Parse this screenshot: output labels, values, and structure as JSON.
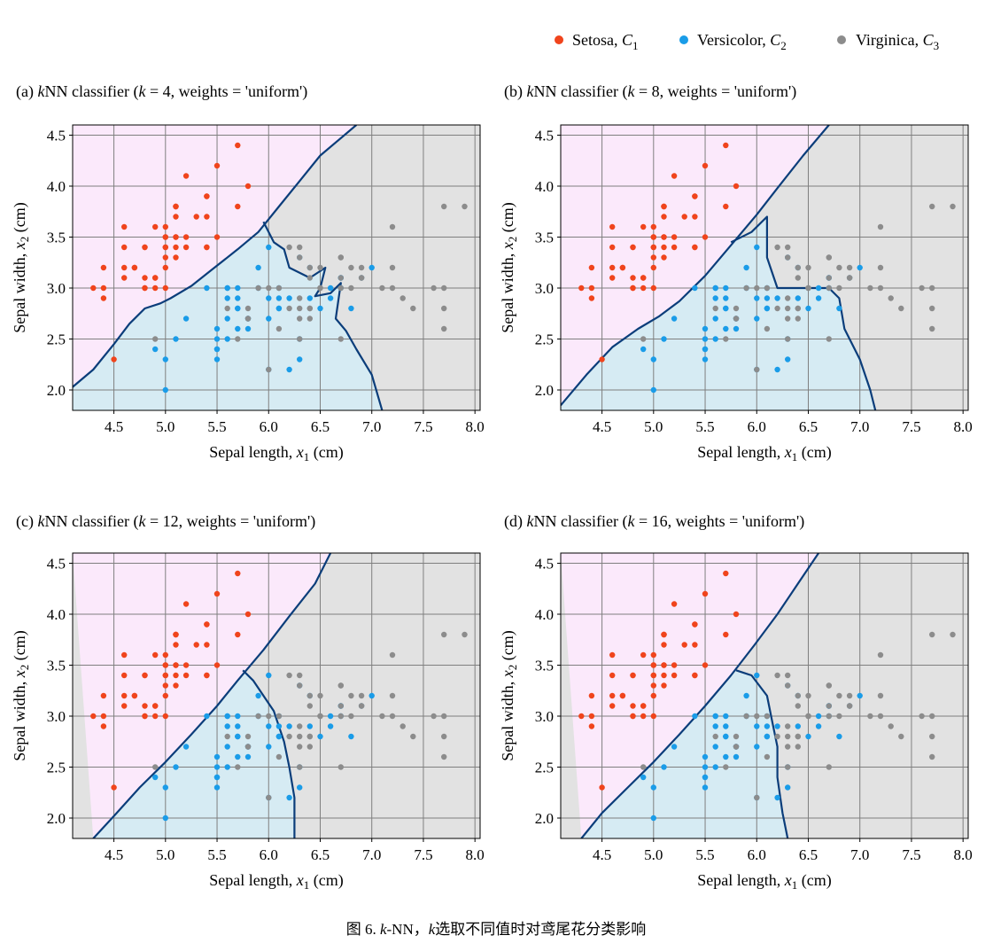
{
  "legend": {
    "placement": "top-right",
    "entries": [
      {
        "name": "Setosa, ",
        "sym": "C",
        "sub": "1",
        "color": "#f0441c"
      },
      {
        "name": "Versicolor, ",
        "sym": "C",
        "sub": "2",
        "color": "#1a9ce8"
      },
      {
        "name": "Virginica, ",
        "sym": "C",
        "sub": "3",
        "color": "#8c8c8c"
      }
    ]
  },
  "caption": {
    "prefix": "图 6. ",
    "k1": "k",
    "mid": "-NN，",
    "k2": "k",
    "suffix": "选取不同值时对鸢尾花分类影响"
  },
  "colors": {
    "region_setosa": "#fbe9fb",
    "region_versicolor": "#d6ebf3",
    "region_virginica": "#e2e2e2",
    "boundary": "#0b3d7a"
  },
  "chart_data": [
    {
      "type": "scatter",
      "panel": "(a)",
      "title": {
        "pre": "(a) ",
        "k": "k",
        "nn": "NN classifier (",
        "k2": "k",
        "post": " = 4, weights = 'uniform')"
      },
      "xlabel": {
        "pre": "Sepal length, ",
        "v": "x",
        "s": "1",
        "u": " (cm)"
      },
      "ylabel": {
        "pre": "Sepal width, ",
        "v": "x",
        "s": "2",
        "u": " (cm)"
      },
      "xlim": [
        4.1,
        8.05
      ],
      "ylim": [
        1.8,
        4.6
      ],
      "grid": true
    },
    {
      "type": "scatter",
      "panel": "(b)",
      "title": {
        "pre": "(b) ",
        "k": "k",
        "nn": "NN classifier (",
        "k2": "k",
        "post": " = 8, weights = 'uniform')"
      },
      "xlabel": {
        "pre": "Sepal length, ",
        "v": "x",
        "s": "1",
        "u": " (cm)"
      },
      "ylabel": {
        "pre": "Sepal width, ",
        "v": "x",
        "s": "2",
        "u": " (cm)"
      },
      "xlim": [
        4.1,
        8.05
      ],
      "ylim": [
        1.8,
        4.6
      ],
      "grid": true
    },
    {
      "type": "scatter",
      "panel": "(c)",
      "title": {
        "pre": "(c) ",
        "k": "k",
        "nn": "NN classifier (",
        "k2": "k",
        "post": " = 12, weights = 'uniform')"
      },
      "xlabel": {
        "pre": "Sepal length, ",
        "v": "x",
        "s": "1",
        "u": " (cm)"
      },
      "ylabel": {
        "pre": "Sepal width, ",
        "v": "x",
        "s": "2",
        "u": " (cm)"
      },
      "xlim": [
        4.1,
        8.05
      ],
      "ylim": [
        1.8,
        4.6
      ],
      "grid": true
    },
    {
      "type": "scatter",
      "panel": "(d)",
      "title": {
        "pre": "(d) ",
        "k": "k",
        "nn": "NN classifier (",
        "k2": "k",
        "post": " = 16, weights = 'uniform')"
      },
      "xlabel": {
        "pre": "Sepal length, ",
        "v": "x",
        "s": "1",
        "u": " (cm)"
      },
      "ylabel": {
        "pre": "Sepal width, ",
        "v": "x",
        "s": "2",
        "u": " (cm)"
      },
      "xlim": [
        4.1,
        8.05
      ],
      "ylim": [
        1.8,
        4.6
      ],
      "grid": true
    }
  ],
  "xticks": [
    {
      "v": 4.5,
      "label": "4.5"
    },
    {
      "v": 5.0,
      "label": "5.0"
    },
    {
      "v": 5.5,
      "label": "5.5"
    },
    {
      "v": 6.0,
      "label": "6.0"
    },
    {
      "v": 6.5,
      "label": "6.5"
    },
    {
      "v": 7.0,
      "label": "7.0"
    },
    {
      "v": 7.5,
      "label": "7.5"
    },
    {
      "v": 8.0,
      "label": "8.0"
    }
  ],
  "yticks": [
    {
      "v": 2.0,
      "label": "2.0"
    },
    {
      "v": 2.5,
      "label": "2.5"
    },
    {
      "v": 3.0,
      "label": "3.0"
    },
    {
      "v": 3.5,
      "label": "3.5"
    },
    {
      "v": 4.0,
      "label": "4.0"
    },
    {
      "v": 4.5,
      "label": "4.5"
    }
  ],
  "points": {
    "setosa": [
      [
        5.1,
        3.5
      ],
      [
        4.9,
        3.0
      ],
      [
        4.7,
        3.2
      ],
      [
        4.6,
        3.1
      ],
      [
        5.0,
        3.6
      ],
      [
        5.4,
        3.9
      ],
      [
        4.6,
        3.4
      ],
      [
        5.0,
        3.4
      ],
      [
        4.4,
        2.9
      ],
      [
        4.9,
        3.1
      ],
      [
        5.4,
        3.7
      ],
      [
        4.8,
        3.4
      ],
      [
        4.8,
        3.0
      ],
      [
        4.3,
        3.0
      ],
      [
        5.8,
        4.0
      ],
      [
        5.7,
        4.4
      ],
      [
        5.4,
        3.9
      ],
      [
        5.1,
        3.5
      ],
      [
        5.7,
        3.8
      ],
      [
        5.1,
        3.8
      ],
      [
        5.4,
        3.4
      ],
      [
        5.1,
        3.7
      ],
      [
        4.6,
        3.6
      ],
      [
        5.1,
        3.3
      ],
      [
        4.8,
        3.4
      ],
      [
        5.0,
        3.0
      ],
      [
        5.0,
        3.4
      ],
      [
        5.2,
        3.5
      ],
      [
        5.2,
        3.4
      ],
      [
        4.7,
        3.2
      ],
      [
        4.8,
        3.1
      ],
      [
        5.4,
        3.4
      ],
      [
        5.2,
        4.1
      ],
      [
        5.5,
        4.2
      ],
      [
        4.9,
        3.1
      ],
      [
        5.0,
        3.2
      ],
      [
        5.5,
        3.5
      ],
      [
        4.9,
        3.6
      ],
      [
        4.4,
        3.0
      ],
      [
        5.1,
        3.4
      ],
      [
        5.0,
        3.5
      ],
      [
        4.5,
        2.3
      ],
      [
        4.4,
        3.2
      ],
      [
        5.0,
        3.5
      ],
      [
        5.1,
        3.8
      ],
      [
        4.8,
        3.0
      ],
      [
        5.1,
        3.8
      ],
      [
        4.6,
        3.2
      ],
      [
        5.3,
        3.7
      ],
      [
        5.0,
        3.3
      ]
    ],
    "versicolor": [
      [
        7.0,
        3.2
      ],
      [
        6.4,
        3.2
      ],
      [
        6.9,
        3.1
      ],
      [
        5.5,
        2.3
      ],
      [
        6.5,
        2.8
      ],
      [
        5.7,
        2.8
      ],
      [
        6.3,
        3.3
      ],
      [
        4.9,
        2.4
      ],
      [
        6.6,
        2.9
      ],
      [
        5.2,
        2.7
      ],
      [
        5.0,
        2.0
      ],
      [
        5.9,
        3.0
      ],
      [
        6.0,
        2.2
      ],
      [
        6.1,
        2.9
      ],
      [
        5.6,
        2.9
      ],
      [
        6.7,
        3.1
      ],
      [
        5.6,
        3.0
      ],
      [
        5.8,
        2.7
      ],
      [
        6.2,
        2.2
      ],
      [
        5.6,
        2.5
      ],
      [
        5.9,
        3.2
      ],
      [
        6.1,
        2.8
      ],
      [
        6.3,
        2.5
      ],
      [
        6.1,
        2.8
      ],
      [
        6.4,
        2.9
      ],
      [
        6.6,
        3.0
      ],
      [
        6.8,
        2.8
      ],
      [
        6.7,
        3.0
      ],
      [
        6.0,
        2.9
      ],
      [
        5.7,
        2.6
      ],
      [
        5.5,
        2.4
      ],
      [
        5.5,
        2.4
      ],
      [
        5.8,
        2.7
      ],
      [
        6.0,
        2.7
      ],
      [
        5.4,
        3.0
      ],
      [
        6.0,
        3.4
      ],
      [
        6.7,
        3.1
      ],
      [
        6.3,
        2.3
      ],
      [
        5.6,
        3.0
      ],
      [
        5.5,
        2.5
      ],
      [
        5.5,
        2.6
      ],
      [
        6.1,
        3.0
      ],
      [
        5.8,
        2.6
      ],
      [
        5.0,
        2.3
      ],
      [
        5.6,
        2.7
      ],
      [
        5.7,
        3.0
      ],
      [
        5.7,
        2.9
      ],
      [
        6.2,
        2.9
      ],
      [
        5.1,
        2.5
      ],
      [
        5.7,
        2.8
      ]
    ],
    "virginica": [
      [
        6.3,
        3.3
      ],
      [
        5.8,
        2.7
      ],
      [
        7.1,
        3.0
      ],
      [
        6.3,
        2.9
      ],
      [
        6.5,
        3.0
      ],
      [
        7.6,
        3.0
      ],
      [
        4.9,
        2.5
      ],
      [
        7.3,
        2.9
      ],
      [
        6.7,
        2.5
      ],
      [
        7.2,
        3.6
      ],
      [
        6.5,
        3.2
      ],
      [
        6.4,
        2.7
      ],
      [
        6.8,
        3.0
      ],
      [
        5.7,
        2.5
      ],
      [
        5.8,
        2.8
      ],
      [
        6.4,
        3.2
      ],
      [
        6.5,
        3.0
      ],
      [
        7.7,
        3.8
      ],
      [
        7.7,
        2.6
      ],
      [
        6.0,
        2.2
      ],
      [
        6.9,
        3.2
      ],
      [
        5.6,
        2.8
      ],
      [
        7.7,
        2.8
      ],
      [
        6.3,
        2.7
      ],
      [
        6.7,
        3.3
      ],
      [
        7.2,
        3.2
      ],
      [
        6.2,
        2.8
      ],
      [
        6.1,
        3.0
      ],
      [
        6.4,
        2.8
      ],
      [
        7.2,
        3.0
      ],
      [
        7.4,
        2.8
      ],
      [
        7.9,
        3.8
      ],
      [
        6.4,
        2.8
      ],
      [
        6.3,
        2.8
      ],
      [
        6.1,
        2.6
      ],
      [
        7.7,
        3.0
      ],
      [
        6.3,
        3.4
      ],
      [
        6.4,
        3.1
      ],
      [
        6.0,
        3.0
      ],
      [
        6.9,
        3.1
      ],
      [
        6.7,
        3.1
      ],
      [
        6.9,
        3.1
      ],
      [
        5.8,
        2.7
      ],
      [
        6.8,
        3.2
      ],
      [
        6.7,
        3.3
      ],
      [
        6.7,
        3.0
      ],
      [
        6.3,
        2.5
      ],
      [
        6.5,
        3.0
      ],
      [
        6.2,
        3.4
      ],
      [
        5.9,
        3.0
      ]
    ]
  }
}
